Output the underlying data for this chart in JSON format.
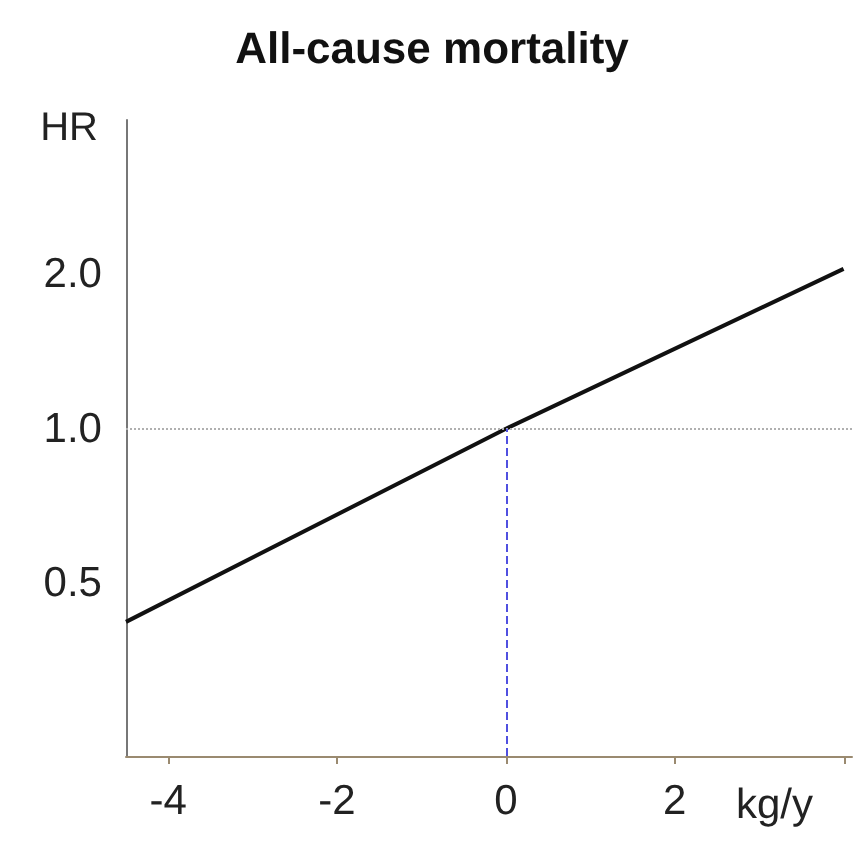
{
  "chart_data": {
    "type": "line",
    "title": "All-cause mortality",
    "xlabel": "kg/y",
    "ylabel": "HR",
    "x": [
      -4.5,
      0,
      4
    ],
    "series": [
      {
        "color": "#111111",
        "values": [
          0.42,
          1,
          2.05
        ]
      }
    ],
    "xlim": [
      -4.5,
      4.1
    ],
    "xticks": [
      -4,
      -2,
      0,
      2,
      {
        "value": 4,
        "label": null
      }
    ],
    "ylim": [
      0.23,
      4
    ],
    "yticks": [
      0.5,
      {
        "value": 1,
        "label": "1.0"
      },
      {
        "value": 2,
        "label": "2.0"
      }
    ],
    "log": "y",
    "grid": false,
    "marker": "none",
    "line_style": "solid",
    "ref_lines": [
      {
        "axis": "y",
        "value": 1,
        "color": "#b0b0b0",
        "line_style": "dotted"
      },
      {
        "axis": "x",
        "value": 0,
        "color": "#5050e0",
        "line_style": "dashed"
      }
    ]
  }
}
